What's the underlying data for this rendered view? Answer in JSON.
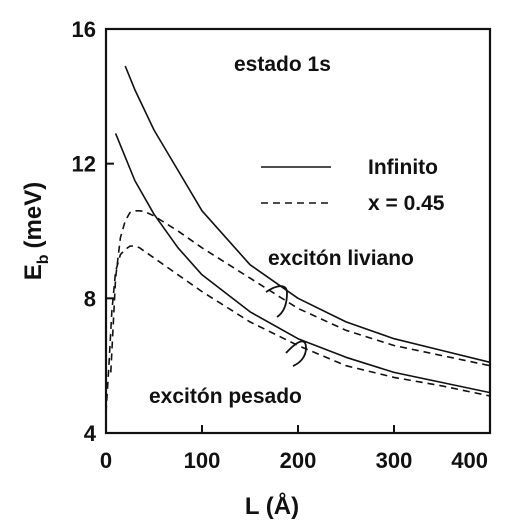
{
  "chart_data": {
    "type": "line",
    "title": "estado 1s",
    "xlabel": "L (Å)",
    "ylabel": {
      "main": "E",
      "sub": "b",
      "unit": "(meV)"
    },
    "xlim": [
      0,
      400
    ],
    "ylim": [
      4,
      16
    ],
    "xticks": [
      "0",
      "100",
      "200",
      "300",
      "400"
    ],
    "yticks": [
      "4",
      "8",
      "12",
      "16"
    ],
    "legend": {
      "placement": "right",
      "entries": [
        {
          "label": "Infinito",
          "style": "solid"
        },
        {
          "label": "x = 0.45",
          "style": "dashed"
        }
      ]
    },
    "annotations": {
      "light": "excitón liviano",
      "heavy": "excitón pesado"
    },
    "series": [
      {
        "group": "light",
        "style": "solid",
        "x": [
          20,
          30,
          50,
          75,
          100,
          150,
          200,
          250,
          300,
          350,
          400
        ],
        "y": [
          14.9,
          14.2,
          13.0,
          11.8,
          10.6,
          9.0,
          8.0,
          7.3,
          6.8,
          6.45,
          6.1
        ]
      },
      {
        "group": "heavy",
        "style": "solid",
        "x": [
          10,
          20,
          30,
          50,
          75,
          100,
          150,
          200,
          250,
          300,
          350,
          400
        ],
        "y": [
          12.9,
          12.2,
          11.5,
          10.5,
          9.5,
          8.7,
          7.6,
          6.8,
          6.25,
          5.8,
          5.5,
          5.2
        ]
      },
      {
        "group": "light",
        "style": "dashed",
        "x": [
          5,
          10,
          15,
          20,
          25,
          30,
          35,
          40,
          50,
          75,
          100,
          150,
          200,
          250,
          300,
          350,
          400
        ],
        "y": [
          5.8,
          8.6,
          9.8,
          10.3,
          10.55,
          10.6,
          10.6,
          10.58,
          10.45,
          10.0,
          9.5,
          8.6,
          7.7,
          7.05,
          6.6,
          6.3,
          6.0
        ]
      },
      {
        "group": "heavy",
        "style": "dashed",
        "x": [
          0,
          3,
          6,
          10,
          15,
          20,
          25,
          30,
          35,
          40,
          50,
          75,
          100,
          150,
          200,
          250,
          300,
          350,
          400
        ],
        "y": [
          4.6,
          6.0,
          7.6,
          8.8,
          9.3,
          9.45,
          9.55,
          9.55,
          9.5,
          9.4,
          9.2,
          8.7,
          8.2,
          7.3,
          6.6,
          6.0,
          5.65,
          5.4,
          5.1
        ]
      }
    ]
  }
}
